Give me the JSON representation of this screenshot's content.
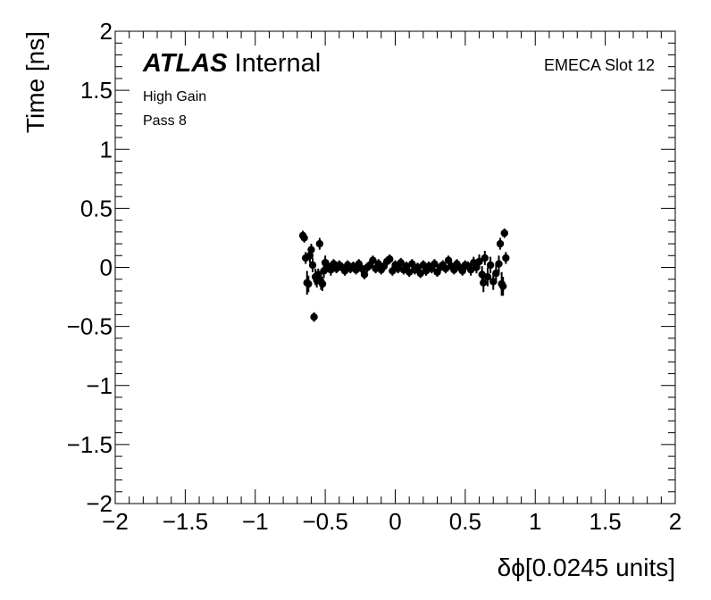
{
  "chart_data": {
    "type": "scatter",
    "xlabel": "δϕ[0.0245 units]",
    "ylabel": "Time [ns]",
    "xlim": [
      -2,
      2
    ],
    "ylim": [
      -2,
      2
    ],
    "x_ticks": [
      "−2",
      "−1.5",
      "−1",
      "−0.5",
      "0",
      "0.5",
      "1",
      "1.5",
      "2"
    ],
    "y_ticks": [
      "−2",
      "−1.5",
      "−1",
      "−0.5",
      "0",
      "0.5",
      "1",
      "1.5",
      "2"
    ],
    "grid": false,
    "annotations": {
      "atlas_bold": "ATLAS",
      "atlas_rest": "Internal",
      "gain": "High Gain",
      "pass": "Pass 8",
      "slot": "EMECA Slot 12"
    },
    "points": [
      {
        "x": -0.66,
        "y": 0.27,
        "err": 0.04
      },
      {
        "x": -0.65,
        "y": 0.25,
        "err": 0.04
      },
      {
        "x": -0.64,
        "y": 0.08,
        "err": 0.05
      },
      {
        "x": -0.63,
        "y": -0.13,
        "err": 0.1
      },
      {
        "x": -0.62,
        "y": -0.14,
        "err": 0.07
      },
      {
        "x": -0.61,
        "y": 0.1,
        "err": 0.06
      },
      {
        "x": -0.6,
        "y": 0.15,
        "err": 0.05
      },
      {
        "x": -0.59,
        "y": 0.02,
        "err": 0.06
      },
      {
        "x": -0.58,
        "y": -0.42,
        "err": 0.04
      },
      {
        "x": -0.57,
        "y": -0.08,
        "err": 0.07
      },
      {
        "x": -0.56,
        "y": -0.11,
        "err": 0.06
      },
      {
        "x": -0.55,
        "y": -0.06,
        "err": 0.05
      },
      {
        "x": -0.54,
        "y": 0.2,
        "err": 0.05
      },
      {
        "x": -0.53,
        "y": -0.12,
        "err": 0.07
      },
      {
        "x": -0.52,
        "y": -0.14,
        "err": 0.06
      },
      {
        "x": -0.51,
        "y": -0.03,
        "err": 0.06
      },
      {
        "x": -0.5,
        "y": 0.04,
        "err": 0.06
      },
      {
        "x": -0.48,
        "y": 0.01,
        "err": 0.05
      },
      {
        "x": -0.46,
        "y": -0.02,
        "err": 0.05
      },
      {
        "x": -0.44,
        "y": 0.03,
        "err": 0.04
      },
      {
        "x": -0.42,
        "y": -0.01,
        "err": 0.04
      },
      {
        "x": -0.4,
        "y": 0.02,
        "err": 0.04
      },
      {
        "x": -0.38,
        "y": 0.0,
        "err": 0.04
      },
      {
        "x": -0.36,
        "y": -0.03,
        "err": 0.04
      },
      {
        "x": -0.34,
        "y": 0.02,
        "err": 0.04
      },
      {
        "x": -0.32,
        "y": -0.01,
        "err": 0.04
      },
      {
        "x": -0.3,
        "y": 0.01,
        "err": 0.04
      },
      {
        "x": -0.28,
        "y": -0.02,
        "err": 0.04
      },
      {
        "x": -0.26,
        "y": 0.03,
        "err": 0.04
      },
      {
        "x": -0.24,
        "y": -0.01,
        "err": 0.04
      },
      {
        "x": -0.22,
        "y": -0.06,
        "err": 0.04
      },
      {
        "x": -0.2,
        "y": 0.0,
        "err": 0.04
      },
      {
        "x": -0.18,
        "y": 0.02,
        "err": 0.04
      },
      {
        "x": -0.16,
        "y": 0.06,
        "err": 0.04
      },
      {
        "x": -0.14,
        "y": -0.01,
        "err": 0.04
      },
      {
        "x": -0.12,
        "y": 0.03,
        "err": 0.04
      },
      {
        "x": -0.1,
        "y": -0.02,
        "err": 0.04
      },
      {
        "x": -0.08,
        "y": 0.01,
        "err": 0.04
      },
      {
        "x": -0.06,
        "y": 0.05,
        "err": 0.04
      },
      {
        "x": -0.04,
        "y": 0.07,
        "err": 0.04
      },
      {
        "x": -0.02,
        "y": -0.03,
        "err": 0.04
      },
      {
        "x": 0.0,
        "y": 0.02,
        "err": 0.04
      },
      {
        "x": 0.02,
        "y": -0.01,
        "err": 0.04
      },
      {
        "x": 0.04,
        "y": 0.04,
        "err": 0.04
      },
      {
        "x": 0.06,
        "y": -0.02,
        "err": 0.04
      },
      {
        "x": 0.08,
        "y": 0.01,
        "err": 0.04
      },
      {
        "x": 0.1,
        "y": -0.04,
        "err": 0.04
      },
      {
        "x": 0.12,
        "y": 0.03,
        "err": 0.04
      },
      {
        "x": 0.14,
        "y": -0.02,
        "err": 0.04
      },
      {
        "x": 0.16,
        "y": 0.0,
        "err": 0.04
      },
      {
        "x": 0.18,
        "y": -0.05,
        "err": 0.04
      },
      {
        "x": 0.2,
        "y": 0.02,
        "err": 0.04
      },
      {
        "x": 0.22,
        "y": -0.03,
        "err": 0.04
      },
      {
        "x": 0.24,
        "y": 0.01,
        "err": 0.04
      },
      {
        "x": 0.26,
        "y": -0.01,
        "err": 0.04
      },
      {
        "x": 0.28,
        "y": 0.03,
        "err": 0.04
      },
      {
        "x": 0.3,
        "y": -0.04,
        "err": 0.04
      },
      {
        "x": 0.32,
        "y": 0.0,
        "err": 0.04
      },
      {
        "x": 0.34,
        "y": 0.02,
        "err": 0.04
      },
      {
        "x": 0.36,
        "y": -0.01,
        "err": 0.04
      },
      {
        "x": 0.38,
        "y": 0.06,
        "err": 0.04
      },
      {
        "x": 0.4,
        "y": 0.01,
        "err": 0.04
      },
      {
        "x": 0.42,
        "y": -0.02,
        "err": 0.04
      },
      {
        "x": 0.44,
        "y": 0.03,
        "err": 0.04
      },
      {
        "x": 0.46,
        "y": 0.0,
        "err": 0.04
      },
      {
        "x": 0.48,
        "y": -0.03,
        "err": 0.04
      },
      {
        "x": 0.5,
        "y": 0.02,
        "err": 0.04
      },
      {
        "x": 0.52,
        "y": 0.01,
        "err": 0.04
      },
      {
        "x": 0.54,
        "y": -0.02,
        "err": 0.05
      },
      {
        "x": 0.56,
        "y": 0.04,
        "err": 0.05
      },
      {
        "x": 0.58,
        "y": 0.0,
        "err": 0.05
      },
      {
        "x": 0.6,
        "y": 0.05,
        "err": 0.06
      },
      {
        "x": 0.62,
        "y": -0.06,
        "err": 0.07
      },
      {
        "x": 0.63,
        "y": -0.13,
        "err": 0.08
      },
      {
        "x": 0.64,
        "y": 0.08,
        "err": 0.06
      },
      {
        "x": 0.66,
        "y": -0.08,
        "err": 0.08
      },
      {
        "x": 0.68,
        "y": 0.02,
        "err": 0.07
      },
      {
        "x": 0.7,
        "y": -0.12,
        "err": 0.07
      },
      {
        "x": 0.72,
        "y": -0.05,
        "err": 0.08
      },
      {
        "x": 0.74,
        "y": 0.03,
        "err": 0.07
      },
      {
        "x": 0.75,
        "y": 0.2,
        "err": 0.05
      },
      {
        "x": 0.76,
        "y": -0.14,
        "err": 0.1
      },
      {
        "x": 0.77,
        "y": -0.16,
        "err": 0.08
      },
      {
        "x": 0.78,
        "y": 0.29,
        "err": 0.04
      },
      {
        "x": 0.79,
        "y": 0.08,
        "err": 0.05
      }
    ]
  }
}
